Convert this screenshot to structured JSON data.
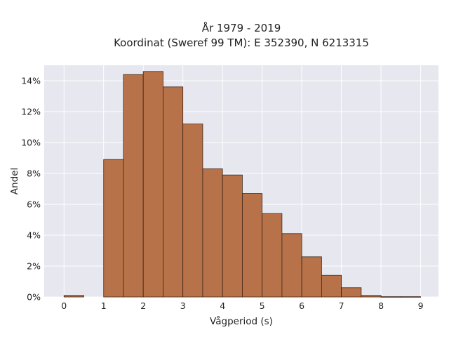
{
  "chart_data": {
    "type": "bar",
    "title_lines": [
      "År 1979 - 2019",
      "Koordinat (Sweref 99 TM): E 352390, N 6213315"
    ],
    "xlabel": "Vågperiod (s)",
    "ylabel": "Andel",
    "x_ticks": [
      "0",
      "1",
      "2",
      "3",
      "4",
      "5",
      "6",
      "7",
      "8",
      "9"
    ],
    "y_ticks": [
      "0%",
      "2%",
      "4%",
      "6%",
      "8%",
      "10%",
      "12%",
      "14%"
    ],
    "xlim": [
      -0.5,
      9.45
    ],
    "ylim": [
      0,
      15
    ],
    "bin_width": 0.5,
    "bins": [
      {
        "start": 0.0,
        "value": 0.1
      },
      {
        "start": 0.5,
        "value": 0.0
      },
      {
        "start": 1.0,
        "value": 8.9
      },
      {
        "start": 1.5,
        "value": 14.4
      },
      {
        "start": 2.0,
        "value": 14.6
      },
      {
        "start": 2.5,
        "value": 13.6
      },
      {
        "start": 3.0,
        "value": 11.2
      },
      {
        "start": 3.5,
        "value": 8.3
      },
      {
        "start": 4.0,
        "value": 7.9
      },
      {
        "start": 4.5,
        "value": 6.7
      },
      {
        "start": 5.0,
        "value": 5.4
      },
      {
        "start": 5.5,
        "value": 4.1
      },
      {
        "start": 6.0,
        "value": 2.6
      },
      {
        "start": 6.5,
        "value": 1.4
      },
      {
        "start": 7.0,
        "value": 0.6
      },
      {
        "start": 7.5,
        "value": 0.1
      },
      {
        "start": 8.0,
        "value": 0.02
      },
      {
        "start": 8.5,
        "value": 0.02
      }
    ],
    "grid": true,
    "bar_color": "#B7724A",
    "bar_edge_color": "#3d2416",
    "plot_background": "#E6E7EF"
  }
}
